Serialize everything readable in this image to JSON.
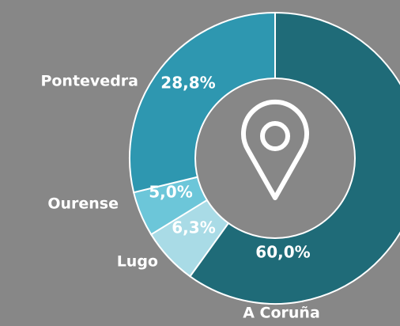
{
  "chart_data": {
    "type": "donut",
    "categories": [
      "A Coruña",
      "Lugo",
      "Ourense",
      "Pontevedra"
    ],
    "values": [
      60.0,
      6.3,
      5.0,
      28.8
    ],
    "value_labels": [
      "60,0%",
      "6,3%",
      "5,0%",
      "28,8%"
    ],
    "colors": [
      "#1f6b78",
      "#a9dbe6",
      "#6cc6d9",
      "#2e97b0"
    ]
  }
}
